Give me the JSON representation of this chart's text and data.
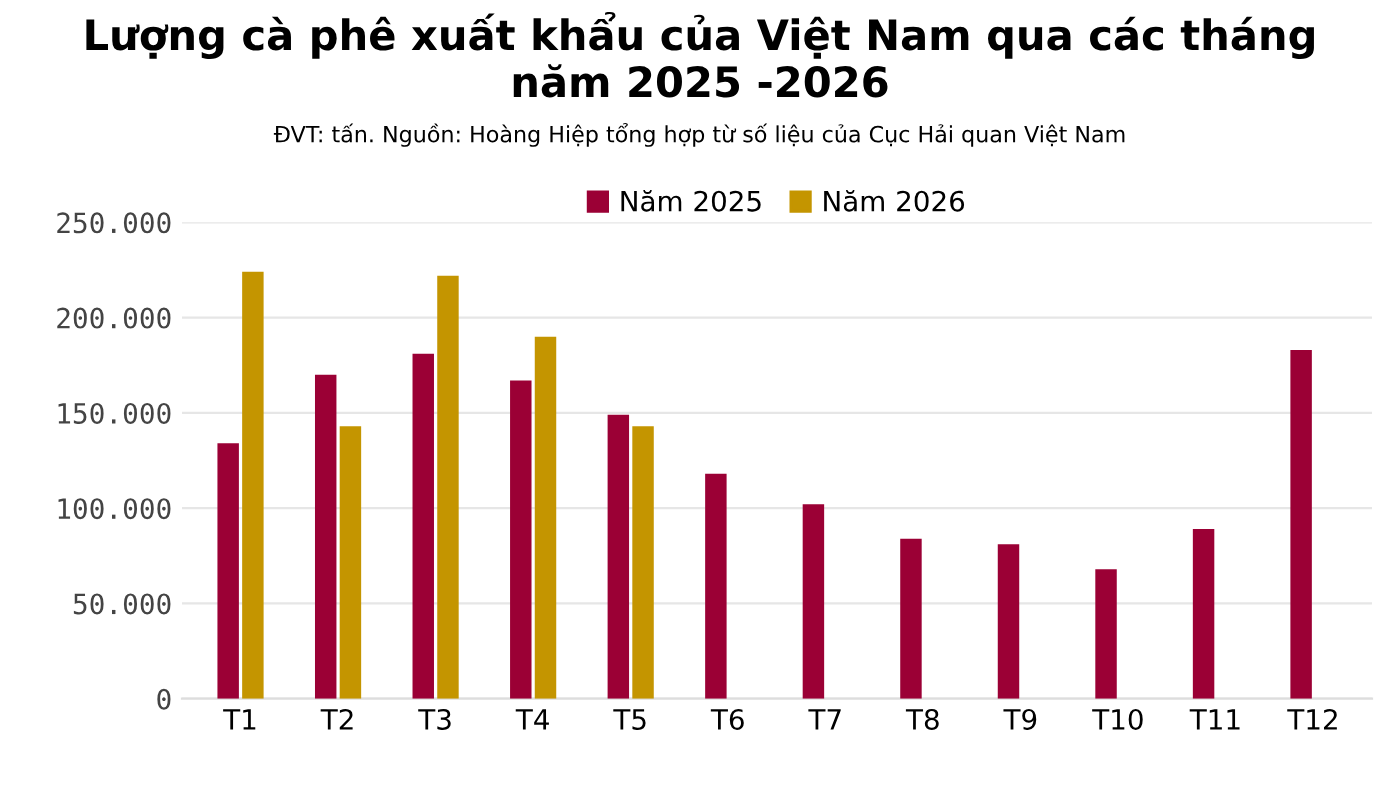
{
  "chart_data": {
    "type": "bar",
    "title": "Lượng cà phê xuất khẩu của Việt Nam qua các tháng\nnăm 2025 -2026",
    "subtitle": "ĐVT: tấn. Nguồn: Hoàng Hiệp tổng hợp từ số liệu của Cục Hải quan Việt Nam",
    "categories": [
      "T1",
      "T2",
      "T3",
      "T4",
      "T5",
      "T6",
      "T7",
      "T8",
      "T9",
      "T10",
      "T11",
      "T12"
    ],
    "series": [
      {
        "name": "Năm 2025",
        "color": "#9b0035",
        "values": [
          134000,
          170000,
          181000,
          167000,
          149000,
          118000,
          102000,
          84000,
          81000,
          68000,
          89000,
          183000
        ]
      },
      {
        "name": "Năm 2026",
        "color": "#c49500",
        "values": [
          224000,
          143000,
          222000,
          190000,
          143000,
          null,
          null,
          null,
          null,
          null,
          null,
          null
        ]
      }
    ],
    "ylim": [
      0,
      250000
    ],
    "yticks": [
      {
        "value": 0,
        "label": "0"
      },
      {
        "value": 50000,
        "label": "50.000"
      },
      {
        "value": 100000,
        "label": "100.000"
      },
      {
        "value": 150000,
        "label": "150.000"
      },
      {
        "value": 200000,
        "label": "200.000"
      },
      {
        "value": 250000,
        "label": "250.000"
      }
    ],
    "grid": "y",
    "legend": "top"
  }
}
